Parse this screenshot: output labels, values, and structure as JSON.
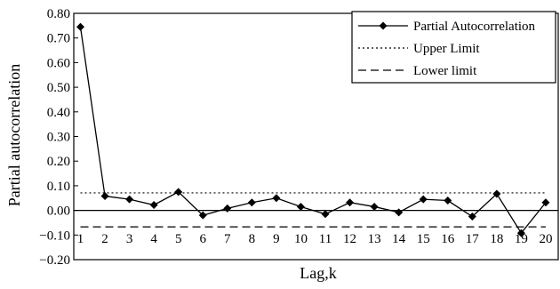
{
  "chart_data": {
    "type": "line",
    "title": "",
    "xlabel": "Lag,k",
    "ylabel": "Partial autocorrelation",
    "ylim": [
      -0.2,
      0.8
    ],
    "yticks": [
      "0.80",
      "0.70",
      "0.60",
      "0.50",
      "0.40",
      "0.30",
      "0.20",
      "0.10",
      "0.00",
      "−0.10",
      "−0.20"
    ],
    "ytick_values": [
      0.8,
      0.7,
      0.6,
      0.5,
      0.4,
      0.3,
      0.2,
      0.1,
      0.0,
      -0.1,
      -0.2
    ],
    "categories": [
      "1",
      "2",
      "3",
      "4",
      "5",
      "6",
      "7",
      "8",
      "9",
      "10",
      "11",
      "12",
      "13",
      "14",
      "15",
      "16",
      "17",
      "18",
      "19",
      "20"
    ],
    "grid": false,
    "legend_position": "top-right",
    "series": [
      {
        "name": "Partial Autocorrelation",
        "style": "solid-with-diamond-markers",
        "values": [
          0.745,
          0.058,
          0.045,
          0.022,
          0.075,
          -0.02,
          0.008,
          0.032,
          0.05,
          0.015,
          -0.015,
          0.032,
          0.015,
          -0.008,
          0.045,
          0.04,
          -0.025,
          0.067,
          -0.092,
          0.032
        ]
      },
      {
        "name": "Upper Limit",
        "style": "dotted",
        "values": [
          0.071,
          0.071,
          0.071,
          0.071,
          0.071,
          0.071,
          0.071,
          0.071,
          0.071,
          0.071,
          0.071,
          0.071,
          0.071,
          0.071,
          0.071,
          0.071,
          0.071,
          0.071,
          0.071,
          0.071
        ]
      },
      {
        "name": "Lower limit",
        "style": "dashed",
        "values": [
          -0.067,
          -0.067,
          -0.067,
          -0.067,
          -0.067,
          -0.067,
          -0.067,
          -0.067,
          -0.067,
          -0.067,
          -0.067,
          -0.067,
          -0.067,
          -0.067,
          -0.067,
          -0.067,
          -0.067,
          -0.067,
          -0.067,
          -0.067
        ]
      }
    ]
  }
}
